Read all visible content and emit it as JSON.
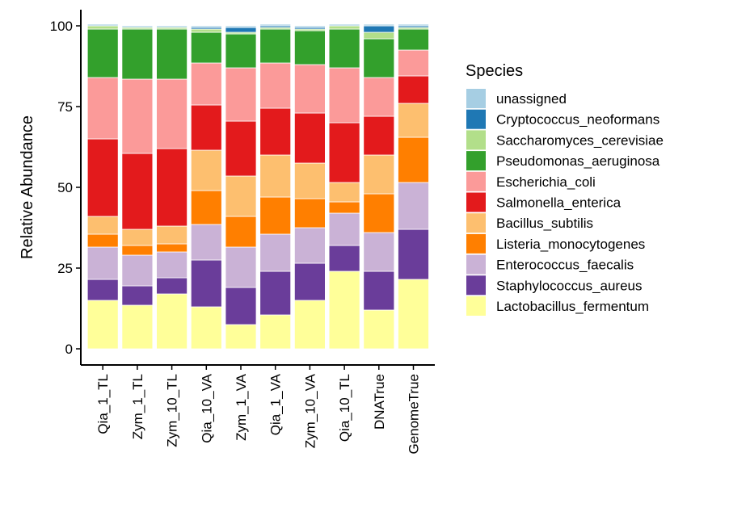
{
  "chart_data": {
    "type": "bar",
    "stacked": true,
    "ylabel": "Relative Abundance",
    "xlabel": "",
    "ylim": [
      0,
      100
    ],
    "yticks": [
      0,
      25,
      50,
      75,
      100
    ],
    "legend_title": "Species",
    "legend_position": "right",
    "grid": false,
    "categories": [
      "Qia_1_TL",
      "Zym_1_TL",
      "Zym_10_TL",
      "Qia_10_VA",
      "Zym_1_VA",
      "Qia_1_VA",
      "Zym_10_VA",
      "Qia_10_TL",
      "DNATrue",
      "GenomeTrue"
    ],
    "series": [
      {
        "name": "Lactobacillus_fermentum",
        "color": "#FFFF99",
        "values": [
          15,
          13.5,
          17,
          13,
          7.5,
          10.5,
          15,
          24,
          12,
          21.5
        ]
      },
      {
        "name": "Staphylococcus_aureus",
        "color": "#6A3D9A",
        "values": [
          6.5,
          6,
          5,
          14.5,
          11.5,
          13.5,
          11.5,
          8,
          12,
          15.5
        ]
      },
      {
        "name": "Enterococcus_faecalis",
        "color": "#CAB2D6",
        "values": [
          10,
          9.5,
          8,
          11,
          12.5,
          11.5,
          11,
          10,
          12,
          14.5
        ]
      },
      {
        "name": "Listeria_monocytogenes",
        "color": "#FF7F00",
        "values": [
          4,
          3,
          2.5,
          10.5,
          9.5,
          11.5,
          9,
          3.5,
          12,
          14
        ]
      },
      {
        "name": "Bacillus_subtilis",
        "color": "#FDBF6F",
        "values": [
          5.5,
          5,
          5.5,
          12.5,
          12.5,
          13,
          11,
          6,
          12,
          10.5
        ]
      },
      {
        "name": "Salmonella_enterica",
        "color": "#E31A1C",
        "values": [
          24,
          23.5,
          24,
          14,
          17,
          14.5,
          15.5,
          18.5,
          12,
          8.5
        ]
      },
      {
        "name": "Escherichia_coli",
        "color": "#FB9A99",
        "values": [
          19,
          23,
          21.5,
          13,
          16.5,
          14,
          15,
          17,
          12,
          8
        ]
      },
      {
        "name": "Pseudomonas_aeruginosa",
        "color": "#33A02C",
        "values": [
          15,
          15.5,
          15.5,
          9.5,
          10.5,
          10.5,
          10.5,
          12,
          12,
          6.5
        ]
      },
      {
        "name": "Saccharomyces_cerevisiae",
        "color": "#B2DF8A",
        "values": [
          1,
          0.5,
          0.5,
          1,
          0.5,
          0.5,
          0.5,
          1,
          2,
          0.5
        ]
      },
      {
        "name": "Cryptococcus_neoformans",
        "color": "#1F78B4",
        "values": [
          0,
          0,
          0,
          0.5,
          1.5,
          0.5,
          0.5,
          0,
          2,
          0.5
        ]
      },
      {
        "name": "unassigned",
        "color": "#A6CEE3",
        "values": [
          0.5,
          0.5,
          0.5,
          0.5,
          0.5,
          0.5,
          0.5,
          0.5,
          0.5,
          0.5
        ]
      }
    ]
  }
}
